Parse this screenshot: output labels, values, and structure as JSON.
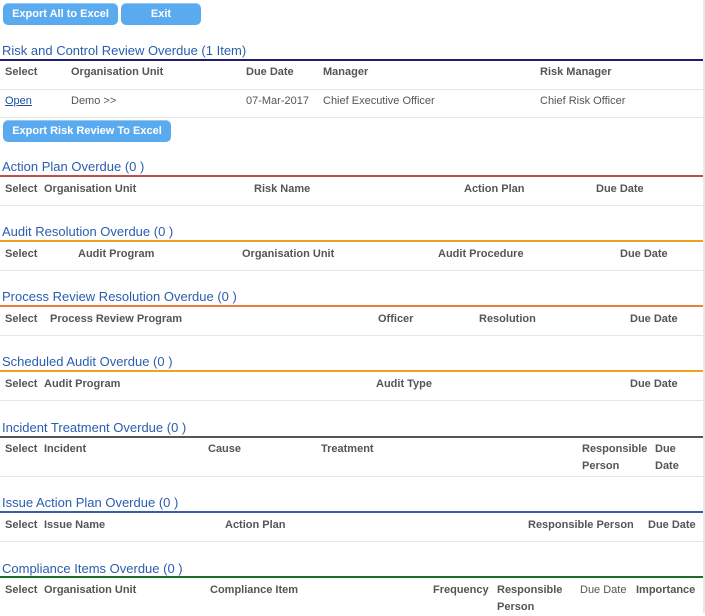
{
  "toolbar": {
    "export_all": "Export All to Excel",
    "exit": "Exit"
  },
  "risk": {
    "title": "Risk and Control Review Overdue (1 Item)",
    "headers": [
      "Select",
      "Organisation Unit",
      "Due Date",
      "Manager",
      "Risk Manager"
    ],
    "row": {
      "select": "Open",
      "org_unit": "Demo >>",
      "due_date": "07-Mar-2017",
      "manager": "Chief Executive Officer",
      "risk_manager": "Chief Risk Officer"
    },
    "export_button": "Export Risk Review To Excel",
    "rule_color": "#1f1f6e"
  },
  "action_plan": {
    "title": "Action Plan Overdue (0 )",
    "headers": [
      "Select",
      "Organisation Unit",
      "Risk Name",
      "Action Plan",
      "Due Date"
    ],
    "rule_color": "#c0504d"
  },
  "audit_resolution": {
    "title": "Audit Resolution Overdue (0 )",
    "headers": [
      "Select",
      "Audit Program",
      "Organisation Unit",
      "Audit Procedure",
      "Due Date"
    ],
    "rule_color": "#f0a020"
  },
  "process_review": {
    "title": "Process Review Resolution Overdue (0 )",
    "headers": [
      "Select",
      "Process Review Program",
      "Officer",
      "Resolution",
      "Due Date"
    ],
    "rule_color": "#e8803a"
  },
  "scheduled_audit": {
    "title": "Scheduled Audit Overdue (0 )",
    "headers": [
      "Select",
      "Audit Program",
      "Audit Type",
      "Due Date"
    ],
    "rule_color": "#f0a020"
  },
  "incident": {
    "title": "Incident Treatment Overdue (0 )",
    "headers": [
      "Select",
      "Incident",
      "Cause",
      "Treatment",
      "Responsible Person",
      "Due Date"
    ],
    "rule_color": "#555555"
  },
  "issue_action": {
    "title": "Issue Action Plan Overdue (0 )",
    "headers": [
      "Select",
      "Issue Name",
      "Action Plan",
      "Responsible Person",
      "Due Date"
    ],
    "rule_color": "#3a5fa0"
  },
  "compliance": {
    "title": "Compliance Items Overdue (0 )",
    "headers": [
      "Select",
      "Organisation Unit",
      "Compliance Item",
      "Frequency",
      "Responsible Person",
      "Due Date",
      "Importance"
    ],
    "rule_color": "#1e6b2a"
  }
}
